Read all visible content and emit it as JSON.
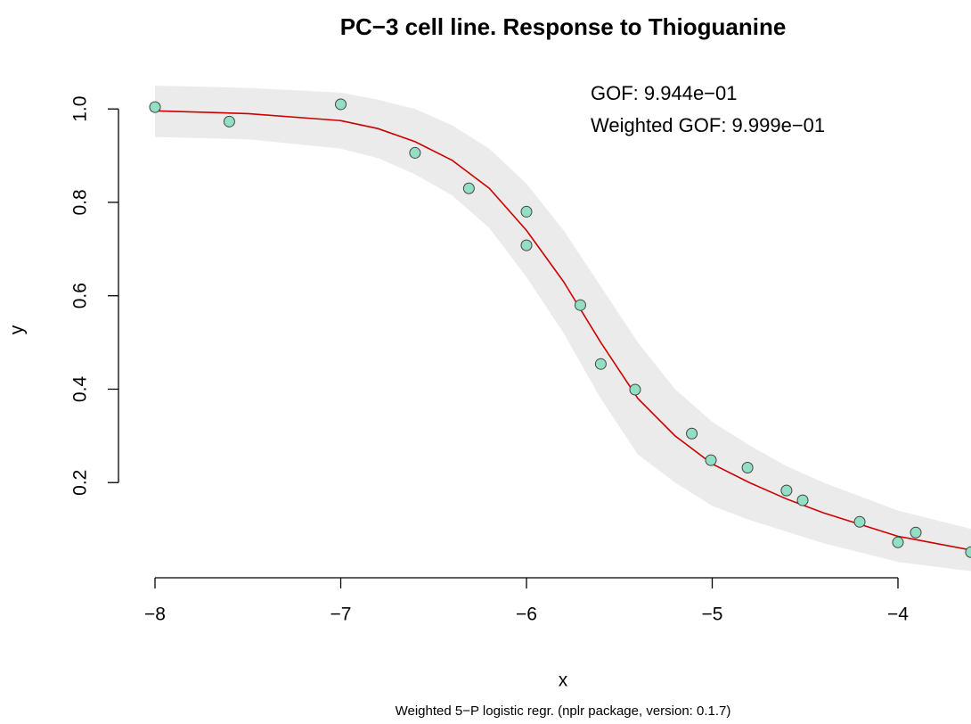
{
  "chart_data": {
    "type": "scatter",
    "title": "PC−3 cell line. Response to Thioguanine",
    "subtitle": "Weighted 5−P logistic regr. (nplr package, version: 0.1.7)",
    "x_label": "x",
    "y_label": "y",
    "annotations": [
      "GOF: 9.944e−01",
      "Weighted GOF: 9.999e−01"
    ],
    "xlim": [
      -8,
      -3.6
    ],
    "ylim": [
      0,
      1.05
    ],
    "xticks": [
      {
        "value": -8,
        "label": "−8"
      },
      {
        "value": -7,
        "label": "−7"
      },
      {
        "value": -6,
        "label": "−6"
      },
      {
        "value": -5,
        "label": "−5"
      },
      {
        "value": -4,
        "label": "−4"
      }
    ],
    "yticks": [
      0.2,
      0.4,
      0.6,
      0.8,
      {
        "value": 1.0,
        "label": "1.0"
      }
    ],
    "series": [
      {
        "color": "#93dfc4",
        "x": [
          -8,
          -7.6,
          -7.0,
          -6.6,
          -6.31,
          -6.0,
          -6.0,
          -5.71,
          -5.6,
          -5.415,
          -5.11,
          -5.007,
          -4.81,
          -4.6,
          -4.513,
          -4.206,
          -4.0,
          -3.904,
          -3.607
        ],
        "values": [
          1.004,
          0.973,
          1.01,
          0.906,
          0.83,
          0.78,
          0.708,
          0.58,
          0.454,
          0.399,
          0.305,
          0.248,
          0.232,
          0.183,
          0.162,
          0.116,
          0.072,
          0.093,
          0.051
        ]
      }
    ],
    "fit": {
      "color": "#cc0000",
      "x": [
        -8,
        -7.5,
        -7,
        -6.8,
        -6.6,
        -6.4,
        -6.2,
        -6,
        -5.8,
        -5.6,
        -5.4,
        -5.2,
        -5,
        -4.8,
        -4.6,
        -4.4,
        -4.2,
        -4,
        -3.8,
        -3.6
      ],
      "values": [
        0.996,
        0.99,
        0.975,
        0.958,
        0.93,
        0.89,
        0.83,
        0.74,
        0.63,
        0.5,
        0.38,
        0.3,
        0.24,
        0.2,
        0.165,
        0.135,
        0.11,
        0.085,
        0.07,
        0.055
      ],
      "band_color": "#ebebeb",
      "band_upper": [
        1.05,
        1.045,
        1.035,
        1.02,
        1.0,
        0.965,
        0.915,
        0.84,
        0.74,
        0.62,
        0.5,
        0.4,
        0.33,
        0.28,
        0.235,
        0.2,
        0.17,
        0.14,
        0.12,
        0.1
      ],
      "band_lower": [
        0.94,
        0.935,
        0.915,
        0.895,
        0.86,
        0.815,
        0.745,
        0.64,
        0.52,
        0.38,
        0.26,
        0.2,
        0.15,
        0.12,
        0.095,
        0.07,
        0.05,
        0.03,
        0.02,
        0.01
      ]
    }
  }
}
